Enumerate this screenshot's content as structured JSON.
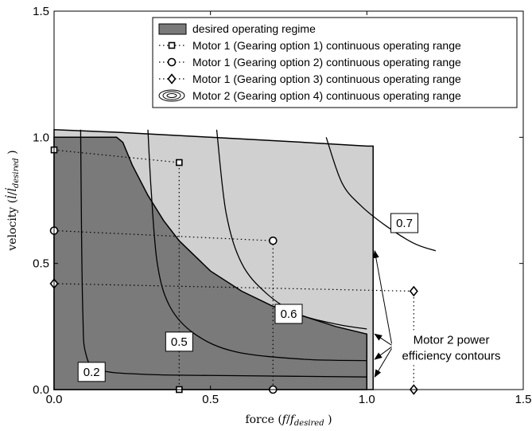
{
  "chart_data": {
    "type": "line",
    "xlabel": "force (f/f_desired)",
    "ylabel": "velocity (l̇/l̇_desired)",
    "xlim": [
      0,
      1.5
    ],
    "ylim": [
      0,
      1.5
    ],
    "x_ticks": [
      "0.0",
      "0.5",
      "1.0",
      "1.5"
    ],
    "y_ticks": [
      "0.0",
      "0.5",
      "1.0",
      "1.5"
    ],
    "grid": false,
    "legend_position": "top-right",
    "colors": {
      "desired_regime": "#7a7a7a",
      "motor2_range": "#d0d0d0",
      "contour": "#000000"
    },
    "legend": [
      {
        "label": "desired operating regime",
        "kind": "patch"
      },
      {
        "label": "Motor 1 (Gearing option 1) continuous operating range",
        "kind": "square"
      },
      {
        "label": "Motor 1 (Gearing option 2) continuous operating range",
        "kind": "circle"
      },
      {
        "label": "Motor 1 (Gearing option 3) continuous operating range",
        "kind": "diamond"
      },
      {
        "label": "Motor 2 (Gearing option 4) continuous operating range",
        "kind": "ellipse"
      }
    ],
    "desired_regime_boundary": [
      [
        0.0,
        1.0
      ],
      [
        0.0,
        0.0
      ],
      [
        1.0,
        0.0
      ],
      [
        1.0,
        0.22
      ],
      [
        0.9,
        0.25
      ],
      [
        0.8,
        0.29
      ],
      [
        0.7,
        0.33
      ],
      [
        0.6,
        0.39
      ],
      [
        0.5,
        0.47
      ],
      [
        0.4,
        0.59
      ],
      [
        0.35,
        0.67
      ],
      [
        0.3,
        0.77
      ],
      [
        0.25,
        0.89
      ],
      [
        0.22,
        0.98
      ],
      [
        0.2,
        1.0
      ]
    ],
    "motor2_range_top": [
      [
        0.0,
        1.03
      ],
      [
        0.2,
        1.02
      ],
      [
        0.5,
        1.0
      ],
      [
        0.8,
        0.98
      ],
      [
        1.0,
        0.965
      ],
      [
        1.02,
        0.965
      ]
    ],
    "motor2_range_right_x": 1.02,
    "series": [
      {
        "name": "Motor 1 (Gearing option 1) continuous operating range",
        "marker": "square",
        "points": [
          [
            0.0,
            0.95
          ],
          [
            0.4,
            0.9
          ],
          [
            0.4,
            0.0
          ]
        ]
      },
      {
        "name": "Motor 1 (Gearing option 2) continuous operating range",
        "marker": "circle",
        "points": [
          [
            0.0,
            0.63
          ],
          [
            0.7,
            0.59
          ],
          [
            0.7,
            0.0
          ]
        ]
      },
      {
        "name": "Motor 1 (Gearing option 3) continuous operating range",
        "marker": "diamond",
        "points": [
          [
            0.0,
            0.42
          ],
          [
            1.15,
            0.39
          ],
          [
            1.15,
            0.0
          ]
        ]
      }
    ],
    "contours": [
      {
        "label": "0.2",
        "label_at": [
          0.12,
          0.07
        ],
        "points": [
          [
            0.085,
            1.03
          ],
          [
            0.088,
            0.6
          ],
          [
            0.092,
            0.3
          ],
          [
            0.1,
            0.15
          ],
          [
            0.14,
            0.08
          ],
          [
            0.3,
            0.06
          ],
          [
            0.6,
            0.055
          ],
          [
            1.0,
            0.05
          ]
        ]
      },
      {
        "label": "0.5",
        "label_at": [
          0.4,
          0.19
        ],
        "points": [
          [
            0.3,
            1.03
          ],
          [
            0.31,
            0.8
          ],
          [
            0.33,
            0.5
          ],
          [
            0.37,
            0.33
          ],
          [
            0.45,
            0.22
          ],
          [
            0.58,
            0.15
          ],
          [
            0.8,
            0.12
          ],
          [
            1.0,
            0.115
          ]
        ]
      },
      {
        "label": "0.6",
        "label_at": [
          0.75,
          0.3
        ],
        "points": [
          [
            0.52,
            1.03
          ],
          [
            0.55,
            0.7
          ],
          [
            0.6,
            0.5
          ],
          [
            0.68,
            0.38
          ],
          [
            0.78,
            0.3
          ],
          [
            0.9,
            0.26
          ],
          [
            1.0,
            0.24
          ]
        ]
      },
      {
        "label": "0.7",
        "label_at": [
          1.12,
          0.66
        ],
        "points": [
          [
            0.87,
            1.0
          ],
          [
            0.92,
            0.82
          ],
          [
            0.98,
            0.73
          ],
          [
            1.06,
            0.65
          ],
          [
            1.15,
            0.58
          ],
          [
            1.22,
            0.55
          ]
        ]
      }
    ],
    "annotation": {
      "text_lines": [
        "Motor 2 power",
        "efficiency contours"
      ],
      "text_at": [
        1.27,
        0.16
      ],
      "arrow_targets": [
        [
          1.02,
          0.55
        ],
        [
          1.02,
          0.22
        ],
        [
          1.02,
          0.12
        ],
        [
          1.02,
          0.05
        ]
      ]
    }
  }
}
